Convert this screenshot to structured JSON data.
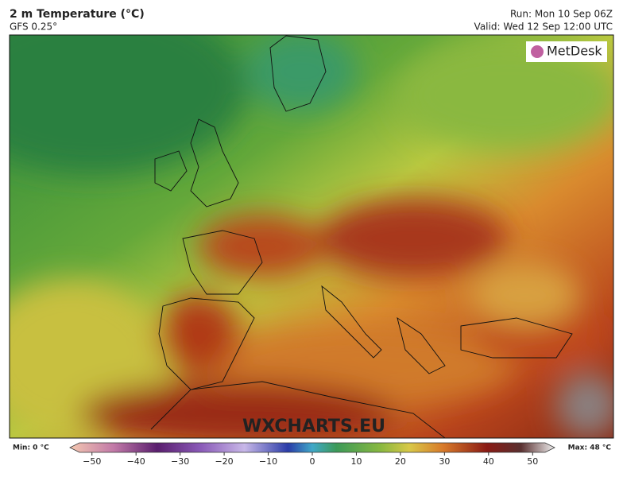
{
  "header": {
    "title": "2 m Temperature (°C)",
    "model": "GFS 0.25°",
    "run": "Run: Mon 10 Sep 06Z",
    "valid": "Valid: Wed 12 Sep 12:00 UTC"
  },
  "logo": "MetDesk",
  "watermark": "WXCHARTS.EU",
  "colorbar": {
    "min_label": "Min: 0 °C",
    "max_label": "Max: 48 °C",
    "lim": [
      -55,
      55
    ],
    "ticks": [
      {
        "value": -50,
        "label": "−50"
      },
      {
        "value": -40,
        "label": "−40"
      },
      {
        "value": -30,
        "label": "−30"
      },
      {
        "value": -20,
        "label": "−20"
      },
      {
        "value": -10,
        "label": "−10"
      },
      0,
      10,
      20,
      30,
      40,
      50
    ]
  }
}
